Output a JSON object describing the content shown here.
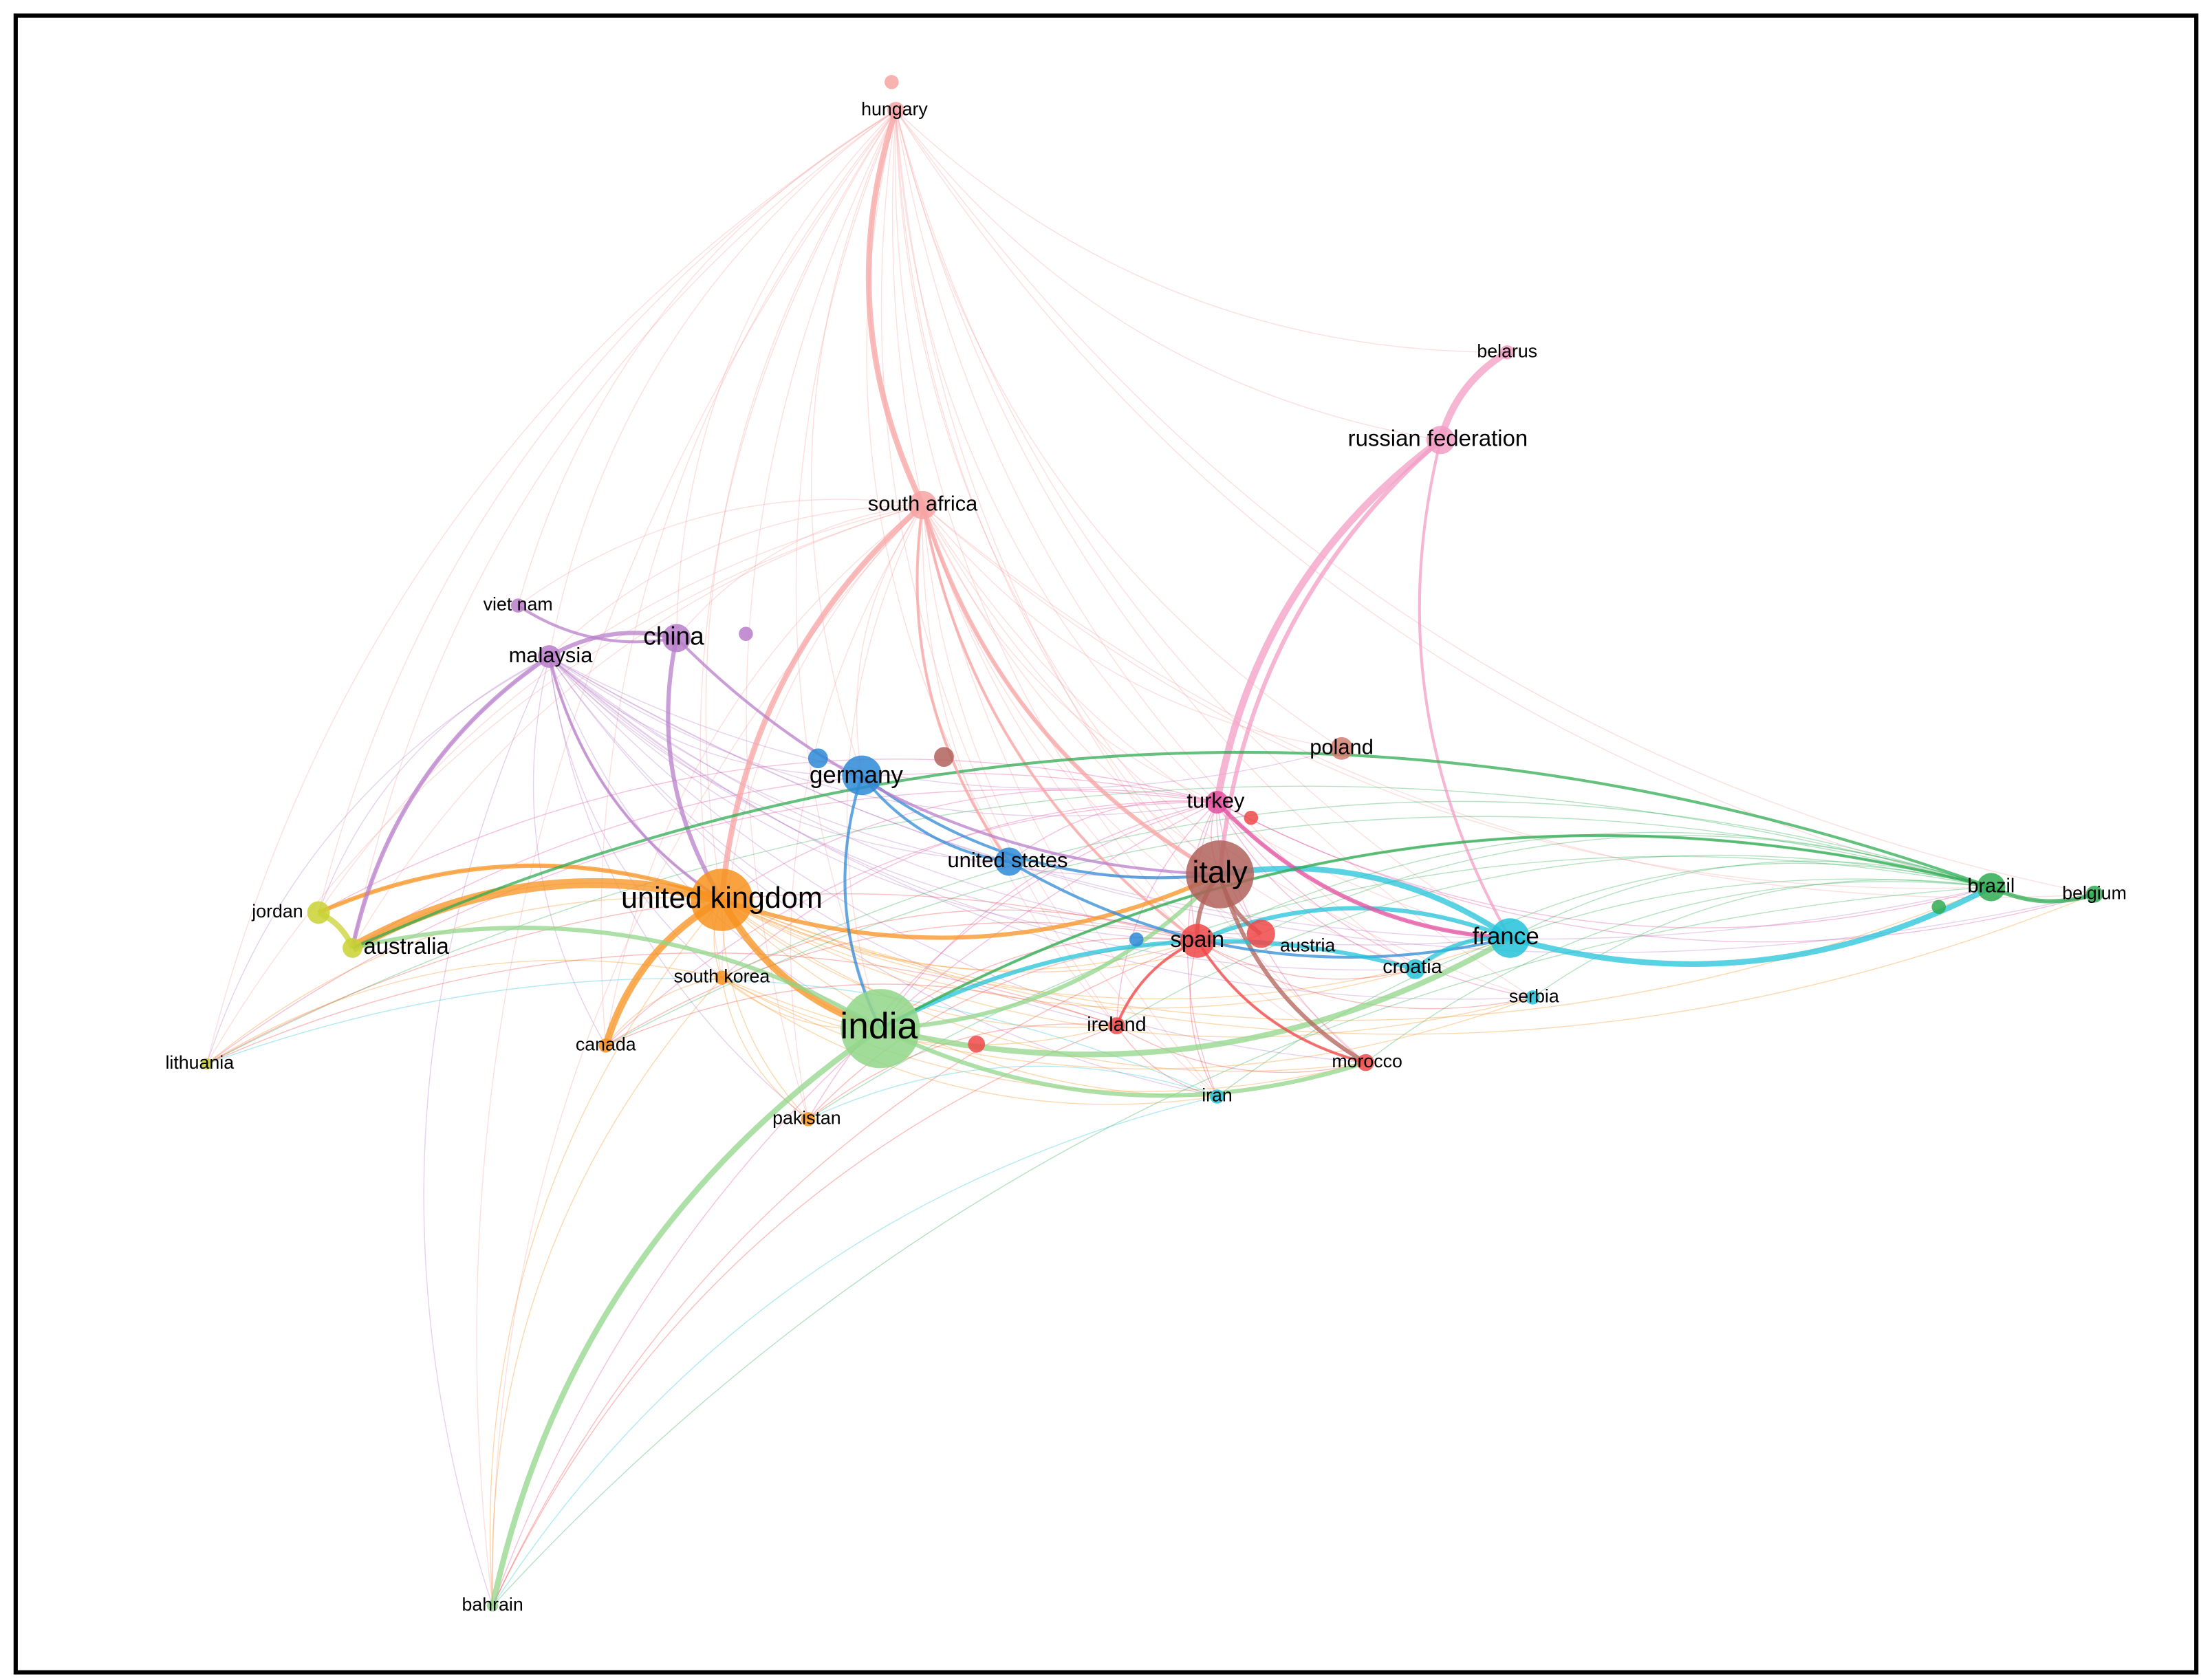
{
  "nodes": [
    {
      "label": "hungary"
    },
    {
      "label": "belarus"
    },
    {
      "label": "russian federation"
    },
    {
      "label": "south africa"
    },
    {
      "label": "viet nam"
    },
    {
      "label": "china"
    },
    {
      "label": "malaysia"
    },
    {
      "label": "poland"
    },
    {
      "label": "germany"
    },
    {
      "label": "turkey"
    },
    {
      "label": "united states"
    },
    {
      "label": "italy"
    },
    {
      "label": "united kingdom"
    },
    {
      "label": "jordan"
    },
    {
      "label": "australia"
    },
    {
      "label": "brazil"
    },
    {
      "label": "belgium"
    },
    {
      "label": "france"
    },
    {
      "label": "spain"
    },
    {
      "label": "austria"
    },
    {
      "label": "croatia"
    },
    {
      "label": "south korea"
    },
    {
      "label": "serbia"
    },
    {
      "label": "india"
    },
    {
      "label": "ireland"
    },
    {
      "label": "canada"
    },
    {
      "label": "morocco"
    },
    {
      "label": "iran"
    },
    {
      "label": "lithuania"
    },
    {
      "label": "pakistan"
    },
    {
      "label": "bahrain"
    }
  ]
}
